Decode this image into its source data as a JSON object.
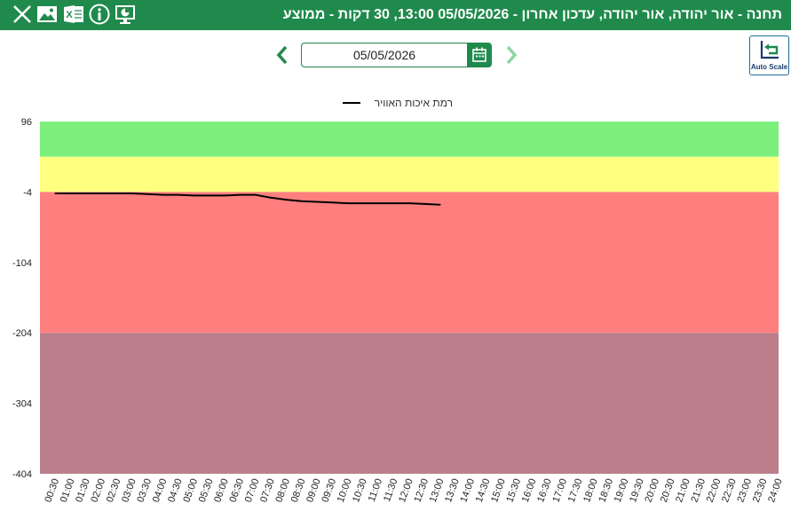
{
  "header": {
    "title": "תחנה - אור יהודה, אור יהודה, עדכון אחרון - 05/05/2026 13:00, 30 דקות - ממוצע",
    "icons": [
      "close-icon",
      "image-icon",
      "excel-icon",
      "info-icon",
      "monitor-icon"
    ]
  },
  "date_picker": {
    "value": "05/05/2026",
    "prev_icon": "chevron-left-icon",
    "next_icon": "chevron-right-icon",
    "calendar_icon": "calendar-icon"
  },
  "autoscale": {
    "label": "Auto Scale"
  },
  "colors": {
    "header_bg": "#1f8a4c",
    "band_good": "#7def7d",
    "band_moderate": "#ffff80",
    "band_bad": "#ff7f7f",
    "band_very_bad": "#bb7f8c",
    "line": "#000000"
  },
  "chart_data": {
    "type": "line",
    "legend": {
      "label": "רמת איכות האוויר",
      "placement": "top-center"
    },
    "ylim": [
      -404,
      96
    ],
    "yticks": [
      "96",
      "-4",
      "-104",
      "-204",
      "-304",
      "-404"
    ],
    "ytick_values": [
      96,
      -4,
      -104,
      -204,
      -304,
      -404
    ],
    "x": [
      "00:30",
      "01:00",
      "01:30",
      "02:00",
      "02:30",
      "03:00",
      "03:30",
      "04:00",
      "04:30",
      "05:00",
      "05:30",
      "06:00",
      "06:30",
      "07:00",
      "07:30",
      "08:00",
      "08:30",
      "09:00",
      "09:30",
      "10:00",
      "10:30",
      "11:00",
      "11:30",
      "12:00",
      "12:30",
      "13:00"
    ],
    "values": [
      -6,
      -6,
      -6,
      -6,
      -6,
      -6,
      -7,
      -8,
      -8,
      -9,
      -9,
      -9,
      -8,
      -8,
      -12,
      -15,
      -17,
      -18,
      -19,
      -20,
      -20,
      -20,
      -20,
      -20,
      -21,
      -22
    ],
    "xticks": [
      "00:30",
      "01:00",
      "01:30",
      "02:00",
      "02:30",
      "03:00",
      "03:30",
      "04:00",
      "04:30",
      "05:00",
      "05:30",
      "06:00",
      "06:30",
      "07:00",
      "07:30",
      "08:00",
      "08:30",
      "09:00",
      "09:30",
      "10:00",
      "10:30",
      "11:00",
      "11:30",
      "12:00",
      "12:30",
      "13:00",
      "13:30",
      "14:00",
      "14:30",
      "15:00",
      "15:30",
      "16:00",
      "16:30",
      "17:00",
      "17:30",
      "18:00",
      "18:30",
      "19:00",
      "19:30",
      "20:00",
      "20:30",
      "21:00",
      "21:30",
      "22:00",
      "22:30",
      "23:00",
      "23:30",
      "24:00"
    ],
    "bands": [
      {
        "from": 46,
        "to": 96,
        "color": "#7def7d"
      },
      {
        "from": -4,
        "to": 46,
        "color": "#ffff80"
      },
      {
        "from": -204,
        "to": -4,
        "color": "#ff7f7f"
      },
      {
        "from": -404,
        "to": -204,
        "color": "#bb7f8c"
      }
    ]
  }
}
